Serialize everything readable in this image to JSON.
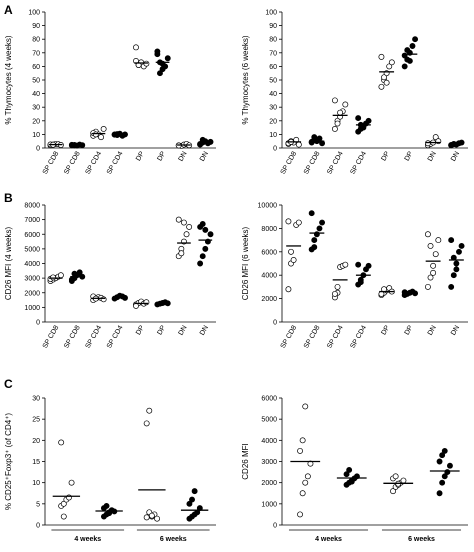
{
  "panel_labels": [
    "A",
    "B",
    "C"
  ],
  "chart_data": [
    {
      "id": "A1",
      "type": "scatter",
      "ylabel": "% Thymocytes (4 weeks)",
      "ylim": [
        0,
        100
      ],
      "yticks": [
        0,
        10,
        20,
        30,
        40,
        50,
        60,
        70,
        80,
        90,
        100
      ],
      "categories": [
        "SP CD8",
        "SP CD8",
        "SP CD4",
        "SP CD4",
        "DP",
        "DP",
        "DN",
        "DN"
      ],
      "fills": [
        "white",
        "black",
        "white",
        "black",
        "white",
        "black",
        "white",
        "black"
      ],
      "values": [
        [
          2,
          2.5,
          3,
          2.8,
          2.2,
          2.6,
          2.4
        ],
        [
          2,
          2.2,
          1.8,
          2.5,
          2.1,
          2.3,
          1.9
        ],
        [
          9,
          12,
          10,
          8,
          14,
          11,
          10
        ],
        [
          10,
          9.5,
          10.5,
          9,
          10,
          9.8,
          10.2
        ],
        [
          74,
          61,
          63,
          60,
          62,
          64,
          61
        ],
        [
          69,
          63,
          58,
          60,
          66,
          71,
          55,
          62
        ],
        [
          2,
          1.5,
          2.5,
          3,
          2,
          1.8
        ],
        [
          3,
          4,
          5,
          3.5,
          4.5,
          2.5,
          6
        ]
      ],
      "means": [
        2.5,
        2.1,
        10.6,
        9.9,
        62.5,
        63,
        2.2,
        4
      ]
    },
    {
      "id": "A2",
      "type": "scatter",
      "ylabel": "% Thymocytes (6 weeks)",
      "ylim": [
        0,
        100
      ],
      "yticks": [
        0,
        10,
        20,
        30,
        40,
        50,
        60,
        70,
        80,
        90,
        100
      ],
      "categories": [
        "SP CD8",
        "SP CD8",
        "SP CD4",
        "SP CD4",
        "DP",
        "DP",
        "DN",
        "DN"
      ],
      "fills": [
        "white",
        "black",
        "white",
        "black",
        "white",
        "black",
        "white",
        "black"
      ],
      "values": [
        [
          3,
          5,
          4,
          6,
          2.5,
          3.5,
          4.5
        ],
        [
          4,
          6,
          5,
          7,
          3.5,
          4.5,
          8,
          5.5
        ],
        [
          14,
          20,
          23,
          27,
          32,
          35,
          18,
          26
        ],
        [
          12,
          14,
          16,
          18,
          20,
          22,
          17,
          15
        ],
        [
          45,
          50,
          55,
          60,
          63,
          67,
          52,
          48
        ],
        [
          60,
          65,
          70,
          75,
          80,
          68,
          72,
          64
        ],
        [
          2,
          3,
          4,
          8,
          5,
          3.5
        ],
        [
          2,
          3,
          2.5,
          3.5,
          4,
          2.2,
          2.8
        ]
      ],
      "means": [
        4.5,
        5,
        24,
        17,
        56,
        69,
        4,
        3
      ]
    },
    {
      "id": "B1",
      "type": "scatter",
      "ylabel": "CD26 MFI (4 weeks)",
      "ylim": [
        0,
        8000
      ],
      "yticks": [
        0,
        1000,
        2000,
        3000,
        4000,
        5000,
        6000,
        7000,
        8000
      ],
      "categories": [
        "SP CD8",
        "SP CD8",
        "SP CD4",
        "SP CD4",
        "DP",
        "DP",
        "DN",
        "DN"
      ],
      "fills": [
        "white",
        "black",
        "white",
        "black",
        "white",
        "black",
        "white",
        "black"
      ],
      "values": [
        [
          2800,
          2900,
          3000,
          3100,
          3200,
          2950,
          3050
        ],
        [
          2800,
          3000,
          3200,
          3400,
          3100,
          2900,
          3300
        ],
        [
          1500,
          1600,
          1700,
          1650,
          1550,
          1750,
          1600
        ],
        [
          1600,
          1700,
          1800,
          1750,
          1650
        ],
        [
          1200,
          1300,
          1400,
          1250,
          1350,
          1100
        ],
        [
          1200,
          1250,
          1300,
          1350,
          1280
        ],
        [
          4500,
          5000,
          5500,
          6000,
          6500,
          7000,
          4700,
          6800
        ],
        [
          4000,
          4500,
          5000,
          5500,
          6000,
          6500,
          6700,
          6300
        ]
      ],
      "means": [
        3000,
        3100,
        1620,
        1700,
        1270,
        1280,
        5400,
        5600
      ]
    },
    {
      "id": "B2",
      "type": "scatter",
      "ylabel": "CD26 MFI (6 weeks)",
      "ylim": [
        0,
        10000
      ],
      "yticks": [
        0,
        2000,
        4000,
        6000,
        8000,
        10000
      ],
      "categories": [
        "SP CD8",
        "SP CD8",
        "SP CD4",
        "SP CD4",
        "DP",
        "DP",
        "DN",
        "DN"
      ],
      "fills": [
        "white",
        "black",
        "white",
        "black",
        "white",
        "black",
        "white",
        "black"
      ],
      "values": [
        [
          2800,
          5000,
          5300,
          8300,
          8500,
          8600,
          6000
        ],
        [
          6200,
          7000,
          7500,
          8000,
          8500,
          9300,
          6400
        ],
        [
          2100,
          2500,
          4700,
          4800,
          4900,
          2400,
          3000
        ],
        [
          3200,
          3400,
          4000,
          4500,
          4800,
          4900,
          3600
        ],
        [
          2300,
          2500,
          2700,
          2900,
          2600,
          2400,
          2800
        ],
        [
          2300,
          2400,
          2500,
          2600,
          2450,
          2550
        ],
        [
          3000,
          3800,
          4800,
          5800,
          7000,
          7500,
          6500,
          4200
        ],
        [
          3000,
          4000,
          5000,
          6000,
          6500,
          7000,
          5500,
          4500
        ]
      ],
      "means": [
        6500,
        7600,
        3600,
        4000,
        2600,
        2500,
        5200,
        5300
      ]
    },
    {
      "id": "C1",
      "type": "scatter",
      "ylabel": "% CD25⁺Foxp3⁺ (of CD4⁺)",
      "ylim": [
        0,
        30
      ],
      "yticks": [
        0,
        5,
        10,
        15,
        20,
        25,
        30
      ],
      "categories": [
        "",
        "",
        "",
        ""
      ],
      "groups": [
        "4 weeks",
        "6 weeks"
      ],
      "fills": [
        "white",
        "black",
        "white",
        "black"
      ],
      "values": [
        [
          4.5,
          5,
          6,
          6.5,
          10,
          19.5,
          2
        ],
        [
          2,
          2.5,
          3,
          3.5,
          3.2,
          4,
          4.5,
          2.8
        ],
        [
          24,
          27,
          2,
          2.5,
          1.5,
          1.8,
          3,
          2.2
        ],
        [
          1.5,
          2,
          2.5,
          3,
          4,
          5,
          6,
          8
        ]
      ],
      "means": [
        6.8,
        3.3,
        8.3,
        3.5
      ]
    },
    {
      "id": "C2",
      "type": "scatter",
      "ylabel": "CD26 MFI",
      "ylim": [
        0,
        6000
      ],
      "yticks": [
        0,
        1000,
        2000,
        3000,
        4000,
        5000,
        6000
      ],
      "categories": [
        "",
        "",
        "",
        ""
      ],
      "groups": [
        "4 weeks",
        "6 weeks"
      ],
      "fills": [
        "white",
        "black",
        "white",
        "black"
      ],
      "values": [
        [
          500,
          1500,
          2000,
          2300,
          2900,
          3500,
          4000,
          5600
        ],
        [
          1900,
          2000,
          2100,
          2200,
          2300,
          2400,
          2600,
          2050
        ],
        [
          1600,
          1800,
          1900,
          2000,
          2100,
          2200,
          2300,
          1950
        ],
        [
          1500,
          2000,
          2300,
          2500,
          2800,
          3000,
          3300,
          3500
        ]
      ],
      "means": [
        3000,
        2220,
        1970,
        2550
      ]
    }
  ]
}
